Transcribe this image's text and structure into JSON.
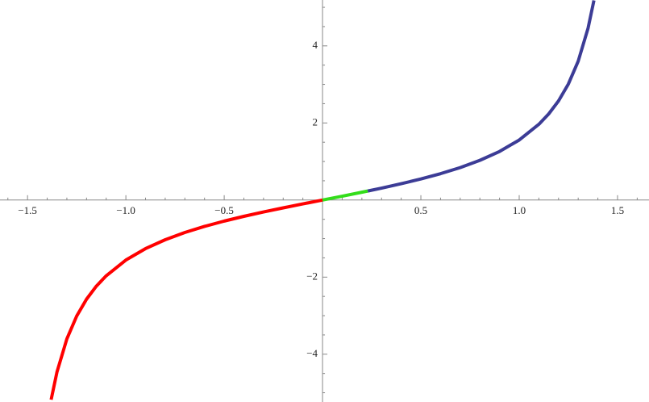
{
  "chart_data": {
    "type": "line",
    "series": [
      {
        "color": "#ff0000",
        "x": [
          -1.38,
          -1.35,
          -1.3,
          -1.25,
          -1.2,
          -1.15,
          -1.1,
          -1.0,
          -0.9,
          -0.8,
          -0.7,
          -0.6,
          -0.5,
          -0.4,
          -0.3,
          -0.2,
          -0.1,
          0
        ],
        "values": [
          -5.18,
          -4.455,
          -3.602,
          -3.01,
          -2.572,
          -2.234,
          -1.965,
          -1.557,
          -1.26,
          -1.03,
          -0.842,
          -0.684,
          -0.546,
          -0.423,
          -0.309,
          -0.203,
          -0.1,
          0
        ]
      },
      {
        "color": "#33dd1a",
        "x": [
          0,
          0.1,
          0.2,
          0.23
        ],
        "values": [
          0,
          0.1,
          0.203,
          0.234
        ]
      },
      {
        "color": "#3c3c96",
        "x": [
          0.23,
          0.3,
          0.4,
          0.5,
          0.6,
          0.7,
          0.8,
          0.9,
          1.0,
          1.1,
          1.15,
          1.2,
          1.25,
          1.3,
          1.35,
          1.38
        ],
        "values": [
          0.234,
          0.309,
          0.423,
          0.546,
          0.684,
          0.842,
          1.03,
          1.26,
          1.557,
          1.965,
          2.234,
          2.572,
          3.01,
          3.602,
          4.455,
          5.18
        ]
      }
    ],
    "xlim": [
      -1.64,
      1.66
    ],
    "ylim": [
      -5.24,
      5.19
    ],
    "xticks": [
      {
        "value": -1.5,
        "label": "−1.5"
      },
      {
        "value": -1.0,
        "label": "−1.0"
      },
      {
        "value": -0.5,
        "label": "−0.5"
      },
      0.5,
      {
        "value": 1.0,
        "label": "1.0"
      },
      1.5
    ],
    "yticks": [
      {
        "value": -4,
        "label": "−4"
      },
      {
        "value": -2,
        "label": "−2"
      },
      2,
      4
    ],
    "xminorticks": [
      -1.6,
      -1.4,
      -1.3,
      -1.2,
      -1.1,
      -0.9,
      -0.8,
      -0.7,
      -0.6,
      -0.4,
      -0.3,
      -0.2,
      -0.1,
      0.1,
      0.2,
      0.3,
      0.4,
      0.6,
      0.7,
      0.8,
      0.9,
      1.1,
      1.2,
      1.3,
      1.4,
      1.6
    ],
    "yminorticks": [
      -5,
      -4.5,
      -3.5,
      -3,
      -2.5,
      -1.5,
      -1,
      -0.5,
      0.5,
      1,
      1.5,
      2.5,
      3,
      3.5,
      4.5,
      5
    ]
  }
}
